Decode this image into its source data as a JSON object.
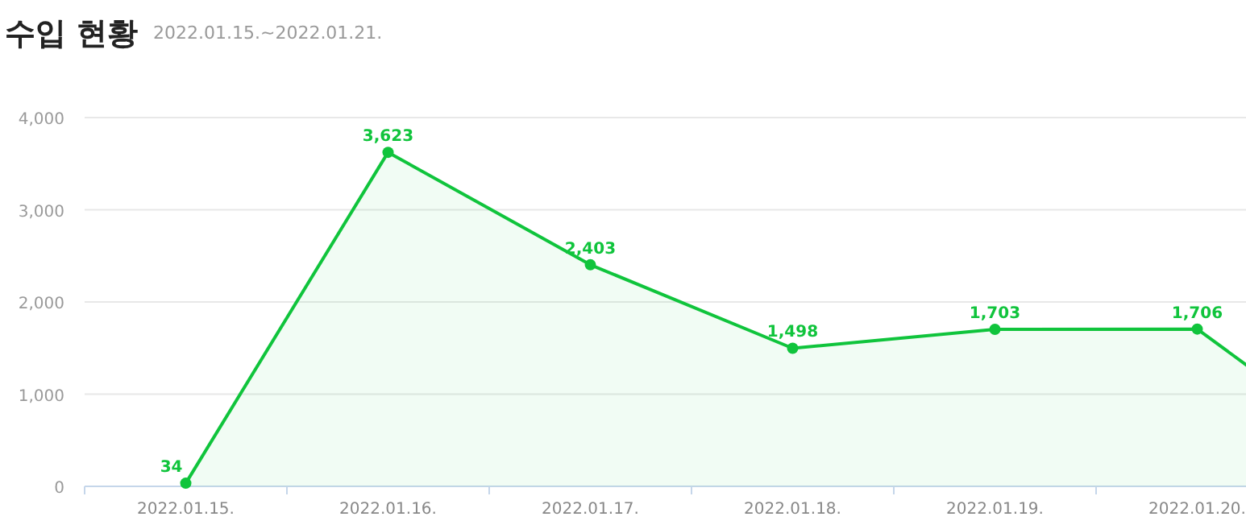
{
  "chart_data": {
    "type": "area",
    "title": "수입 현황",
    "subtitle": "2022.01.15.~2022.01.21.",
    "categories": [
      "2022.01.15.",
      "2022.01.16.",
      "2022.01.17.",
      "2022.01.18.",
      "2022.01.19.",
      "2022.01.20.",
      null
    ],
    "series": [
      {
        "color": "#10c43c",
        "values": [
          34,
          3623,
          2403,
          1498,
          1703,
          1706,
          100
        ],
        "value_labels": [
          "34",
          "3,623",
          "2,403",
          "1,498",
          "1,703",
          "1,706",
          null
        ]
      }
    ],
    "ylim": [
      0,
      4000
    ],
    "yticks": [
      {
        "value": 0,
        "label": "0"
      },
      {
        "value": 1000,
        "label": "1,000"
      },
      {
        "value": 2000,
        "label": "2,000"
      },
      {
        "value": 3000,
        "label": "3,000"
      },
      {
        "value": 4000,
        "label": "4,000"
      }
    ],
    "grid": "y",
    "marker": "circle"
  }
}
